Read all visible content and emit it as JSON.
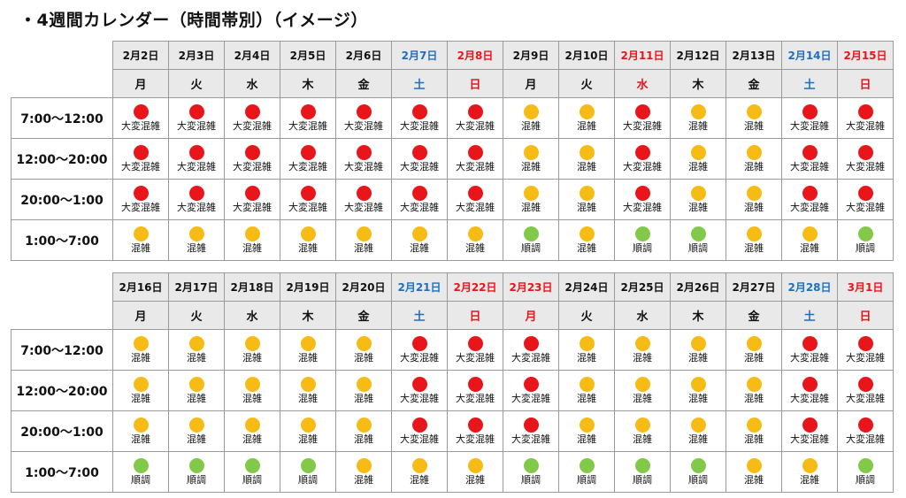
{
  "title": "・4週間カレンダー（時間帯別）（イメージ）",
  "colors": {
    "red": "#e8151b",
    "yellow": "#f7bb16",
    "green": "#82c94a",
    "blue_text": "#1f6fbf",
    "red_text": "#e8151b",
    "header_bg": "#e9e9e9",
    "border": "#9a9a9a"
  },
  "legend": {
    "R": {
      "label": "大変混雑",
      "color": "#e8151b"
    },
    "Y": {
      "label": "混雑",
      "color": "#f7bb16"
    },
    "G": {
      "label": "順調",
      "color": "#82c94a"
    }
  },
  "time_slots": [
    "7:00～12:00",
    "12:00～20:00",
    "20:00～1:00",
    "1:00～7:00"
  ],
  "weeks": [
    {
      "dates": [
        "2月2日",
        "2月3日",
        "2月4日",
        "2月5日",
        "2月6日",
        "2月7日",
        "2月8日",
        "2月9日",
        "2月10日",
        "2月11日",
        "2月12日",
        "2月13日",
        "2月14日",
        "2月15日"
      ],
      "weekdays": [
        "月",
        "火",
        "水",
        "木",
        "金",
        "土",
        "日",
        "月",
        "火",
        "水",
        "木",
        "金",
        "土",
        "日"
      ],
      "date_colors": [
        "black",
        "black",
        "black",
        "black",
        "black",
        "blue",
        "red",
        "black",
        "black",
        "red",
        "black",
        "black",
        "blue",
        "red"
      ],
      "weekday_colors": [
        "black",
        "black",
        "black",
        "black",
        "black",
        "blue",
        "red",
        "black",
        "black",
        "red",
        "black",
        "black",
        "blue",
        "red"
      ],
      "rows": [
        [
          "R",
          "R",
          "R",
          "R",
          "R",
          "R",
          "R",
          "Y",
          "Y",
          "R",
          "Y",
          "Y",
          "R",
          "R"
        ],
        [
          "R",
          "R",
          "R",
          "R",
          "R",
          "R",
          "R",
          "Y",
          "Y",
          "R",
          "Y",
          "Y",
          "R",
          "R"
        ],
        [
          "R",
          "R",
          "R",
          "R",
          "R",
          "R",
          "R",
          "Y",
          "Y",
          "R",
          "Y",
          "Y",
          "R",
          "R"
        ],
        [
          "Y",
          "Y",
          "Y",
          "Y",
          "Y",
          "Y",
          "Y",
          "G",
          "Y",
          "G",
          "G",
          "Y",
          "Y",
          "G"
        ]
      ]
    },
    {
      "dates": [
        "2月16日",
        "2月17日",
        "2月18日",
        "2月19日",
        "2月20日",
        "2月21日",
        "2月22日",
        "2月23日",
        "2月24日",
        "2月25日",
        "2月26日",
        "2月27日",
        "2月28日",
        "3月1日"
      ],
      "weekdays": [
        "月",
        "火",
        "水",
        "木",
        "金",
        "土",
        "日",
        "月",
        "火",
        "水",
        "木",
        "金",
        "土",
        "日"
      ],
      "date_colors": [
        "black",
        "black",
        "black",
        "black",
        "black",
        "blue",
        "red",
        "red",
        "black",
        "black",
        "black",
        "black",
        "blue",
        "red"
      ],
      "weekday_colors": [
        "black",
        "black",
        "black",
        "black",
        "black",
        "blue",
        "red",
        "red",
        "black",
        "black",
        "black",
        "black",
        "blue",
        "red"
      ],
      "rows": [
        [
          "Y",
          "Y",
          "Y",
          "Y",
          "Y",
          "R",
          "R",
          "R",
          "Y",
          "Y",
          "Y",
          "Y",
          "R",
          "R"
        ],
        [
          "Y",
          "Y",
          "Y",
          "Y",
          "Y",
          "R",
          "R",
          "R",
          "Y",
          "Y",
          "Y",
          "Y",
          "R",
          "R"
        ],
        [
          "Y",
          "Y",
          "Y",
          "Y",
          "Y",
          "R",
          "R",
          "R",
          "Y",
          "Y",
          "Y",
          "Y",
          "R",
          "R"
        ],
        [
          "G",
          "G",
          "G",
          "G",
          "Y",
          "Y",
          "Y",
          "G",
          "G",
          "G",
          "G",
          "Y",
          "Y",
          "G"
        ]
      ]
    }
  ]
}
